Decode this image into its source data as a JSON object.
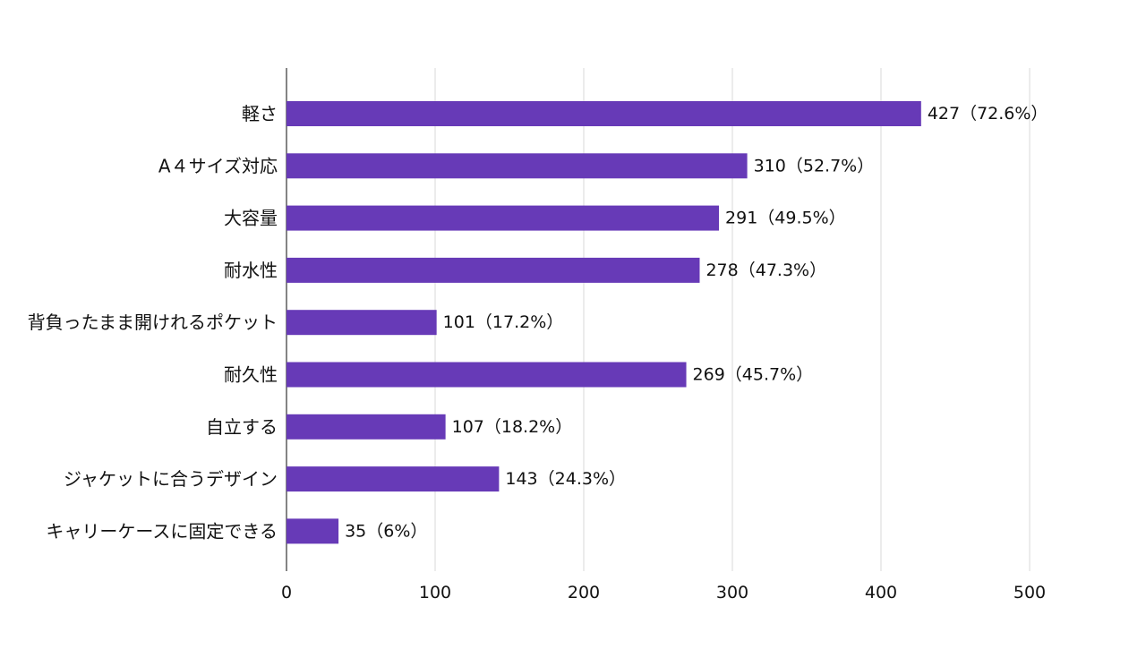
{
  "chart_data": {
    "type": "bar",
    "orientation": "horizontal",
    "categories": [
      "軽さ",
      "A４サイズ対応",
      "大容量",
      "耐水性",
      "背負ったまま開けれるポケット",
      "耐久性",
      "自立する",
      "ジャケットに合うデザイン",
      "キャリーケースに固定できる"
    ],
    "values": [
      427,
      310,
      291,
      278,
      101,
      269,
      107,
      143,
      35
    ],
    "data_labels": [
      "427（72.6%）",
      "310（52.7%）",
      "291（49.5%）",
      "278（47.3%）",
      "101（17.2%）",
      "269（45.7%）",
      "107（18.2%）",
      "143（24.3%）",
      "35（6%）"
    ],
    "xlim": [
      0,
      500
    ],
    "xticks": [
      0,
      100,
      200,
      300,
      400,
      500
    ],
    "xtick_labels": [
      "0",
      "100",
      "200",
      "300",
      "400",
      "500"
    ],
    "grid": "vertical",
    "title": "",
    "xlabel": "",
    "ylabel": "",
    "bar_color": "#673AB7",
    "grid_color": "#d9d9d9",
    "axis_color": "#333333"
  }
}
